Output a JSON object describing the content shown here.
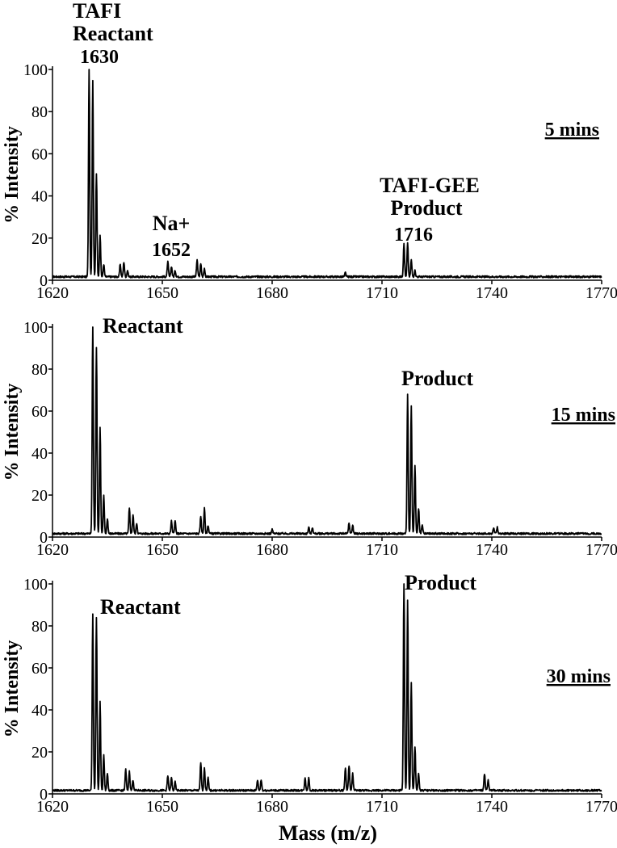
{
  "chart_data": [
    {
      "type": "line",
      "panel": "5 mins",
      "time_label": "5 mins",
      "ylabel": "% Intensity",
      "xlim": [
        1620,
        1770
      ],
      "ylim": [
        0,
        100
      ],
      "xticks": [
        1620,
        1650,
        1680,
        1710,
        1740,
        1770
      ],
      "yticks": [
        0,
        20,
        40,
        60,
        80,
        100
      ],
      "annotations": [
        {
          "lines": [
            "TAFI",
            "Reactant",
            "1630"
          ],
          "x": 1630
        },
        {
          "lines": [
            "Na+",
            "1652"
          ],
          "x": 1652
        },
        {
          "lines": [
            "TAFI-GEE",
            "Product",
            "1716"
          ],
          "x": 1716
        }
      ],
      "peaks": [
        {
          "x": 1630.0,
          "y": 100
        },
        {
          "x": 1631.0,
          "y": 93
        },
        {
          "x": 1632.0,
          "y": 49
        },
        {
          "x": 1633.0,
          "y": 20
        },
        {
          "x": 1634.0,
          "y": 6
        },
        {
          "x": 1638.5,
          "y": 6
        },
        {
          "x": 1639.5,
          "y": 7
        },
        {
          "x": 1640.5,
          "y": 3
        },
        {
          "x": 1651.5,
          "y": 7
        },
        {
          "x": 1652.5,
          "y": 5
        },
        {
          "x": 1653.5,
          "y": 3
        },
        {
          "x": 1659.5,
          "y": 8
        },
        {
          "x": 1660.5,
          "y": 6
        },
        {
          "x": 1661.5,
          "y": 4
        },
        {
          "x": 1700.0,
          "y": 2
        },
        {
          "x": 1716.0,
          "y": 16
        },
        {
          "x": 1717.0,
          "y": 16
        },
        {
          "x": 1718.0,
          "y": 8
        },
        {
          "x": 1719.0,
          "y": 3
        }
      ]
    },
    {
      "type": "line",
      "panel": "15 mins",
      "time_label": "15 mins",
      "ylabel": "% Intensity",
      "xlim": [
        1620,
        1770
      ],
      "ylim": [
        0,
        100
      ],
      "xticks": [
        1620,
        1650,
        1680,
        1710,
        1740,
        1770
      ],
      "yticks": [
        0,
        20,
        40,
        60,
        80,
        100
      ],
      "annotations": [
        {
          "lines": [
            "Reactant"
          ],
          "x": 1637
        },
        {
          "lines": [
            "Product"
          ],
          "x": 1722
        }
      ],
      "peaks": [
        {
          "x": 1631.0,
          "y": 100
        },
        {
          "x": 1632.0,
          "y": 89
        },
        {
          "x": 1633.0,
          "y": 51
        },
        {
          "x": 1634.0,
          "y": 18
        },
        {
          "x": 1635.0,
          "y": 7
        },
        {
          "x": 1641.0,
          "y": 12
        },
        {
          "x": 1642.0,
          "y": 9
        },
        {
          "x": 1643.0,
          "y": 5
        },
        {
          "x": 1652.5,
          "y": 6
        },
        {
          "x": 1653.5,
          "y": 6
        },
        {
          "x": 1660.5,
          "y": 8
        },
        {
          "x": 1661.5,
          "y": 12
        },
        {
          "x": 1662.5,
          "y": 4
        },
        {
          "x": 1680.0,
          "y": 2
        },
        {
          "x": 1690.0,
          "y": 3
        },
        {
          "x": 1691.0,
          "y": 3
        },
        {
          "x": 1701.0,
          "y": 5
        },
        {
          "x": 1702.0,
          "y": 4
        },
        {
          "x": 1717.0,
          "y": 66
        },
        {
          "x": 1718.0,
          "y": 61
        },
        {
          "x": 1719.0,
          "y": 32
        },
        {
          "x": 1720.0,
          "y": 12
        },
        {
          "x": 1721.0,
          "y": 4
        },
        {
          "x": 1740.5,
          "y": 3
        },
        {
          "x": 1741.5,
          "y": 3
        }
      ]
    },
    {
      "type": "line",
      "panel": "30 mins",
      "time_label": "30 mins",
      "ylabel": "% Intensity",
      "xlim": [
        1620,
        1770
      ],
      "ylim": [
        0,
        100
      ],
      "xticks": [
        1620,
        1650,
        1680,
        1710,
        1740,
        1770
      ],
      "yticks": [
        0,
        20,
        40,
        60,
        80,
        100
      ],
      "annotations": [
        {
          "lines": [
            "Reactant"
          ],
          "x": 1637
        },
        {
          "lines": [
            "Product"
          ],
          "x": 1722
        }
      ],
      "peaks": [
        {
          "x": 1631.0,
          "y": 84
        },
        {
          "x": 1632.0,
          "y": 82
        },
        {
          "x": 1633.0,
          "y": 42
        },
        {
          "x": 1634.0,
          "y": 17
        },
        {
          "x": 1635.0,
          "y": 8
        },
        {
          "x": 1640.0,
          "y": 10
        },
        {
          "x": 1641.0,
          "y": 9
        },
        {
          "x": 1642.0,
          "y": 5
        },
        {
          "x": 1651.5,
          "y": 7
        },
        {
          "x": 1652.5,
          "y": 6
        },
        {
          "x": 1653.5,
          "y": 4
        },
        {
          "x": 1660.5,
          "y": 13
        },
        {
          "x": 1661.5,
          "y": 11
        },
        {
          "x": 1662.5,
          "y": 6
        },
        {
          "x": 1676.0,
          "y": 5
        },
        {
          "x": 1677.0,
          "y": 5
        },
        {
          "x": 1689.0,
          "y": 6
        },
        {
          "x": 1690.0,
          "y": 6
        },
        {
          "x": 1700.0,
          "y": 11
        },
        {
          "x": 1701.0,
          "y": 12
        },
        {
          "x": 1702.0,
          "y": 8
        },
        {
          "x": 1716.0,
          "y": 100
        },
        {
          "x": 1717.0,
          "y": 91
        },
        {
          "x": 1718.0,
          "y": 51
        },
        {
          "x": 1719.0,
          "y": 21
        },
        {
          "x": 1720.0,
          "y": 8
        },
        {
          "x": 1738.0,
          "y": 8
        },
        {
          "x": 1739.0,
          "y": 5
        }
      ]
    }
  ],
  "figure": {
    "xlabel": "Mass (m/z)"
  }
}
